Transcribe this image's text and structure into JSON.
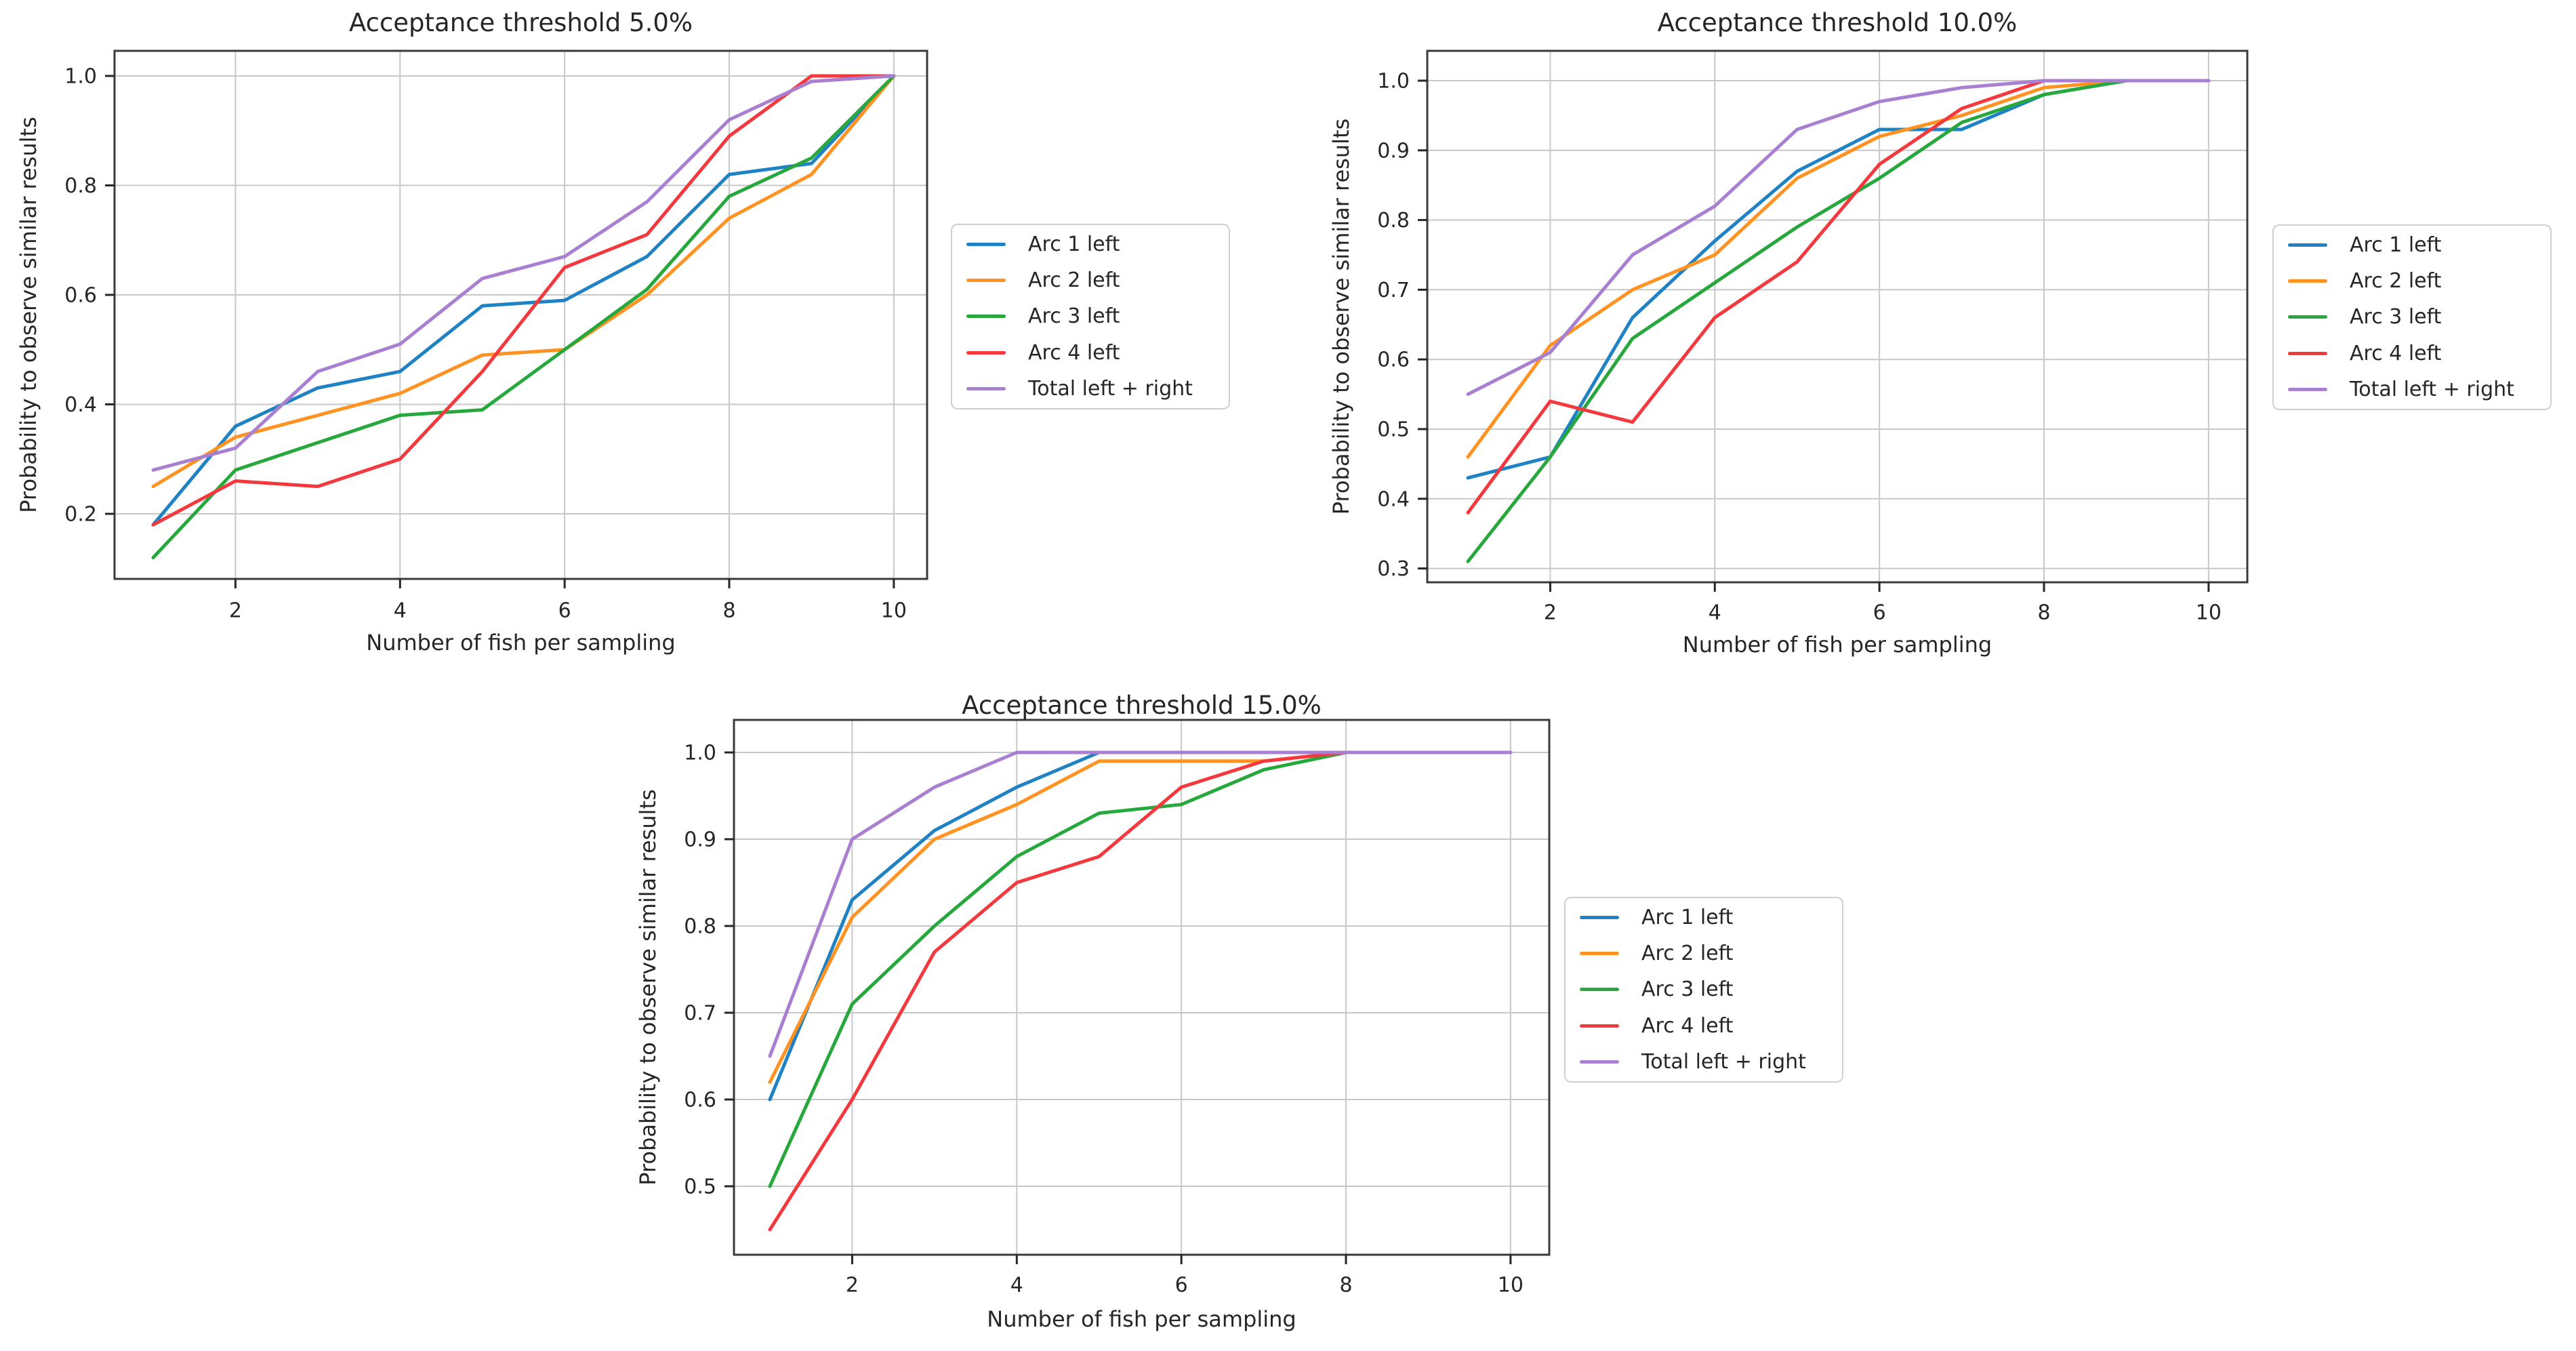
{
  "page": {
    "background": "#ffffff",
    "text_color": "#262626",
    "grid_color": "#c8c8c8",
    "spine_color": "#3a3a3a"
  },
  "chart_data": [
    {
      "type": "line",
      "title": "Acceptance threshold 5.0%",
      "xlabel": "Number of fish per sampling",
      "ylabel": "Probability to observe similar results",
      "x": [
        1,
        2,
        3,
        4,
        5,
        6,
        7,
        8,
        9,
        10
      ],
      "x_ticks": [
        "2",
        "4",
        "6",
        "8",
        "10"
      ],
      "y_ticks": [
        "0.2",
        "0.4",
        "0.6",
        "0.8",
        "1.0"
      ],
      "xlim": [
        0.53,
        10.45
      ],
      "ylim": [
        0.07,
        1.04
      ],
      "grid": true,
      "legend_position": "center right outside",
      "series": [
        {
          "name": "Arc 1 left",
          "color": "#1f82c4",
          "values": [
            0.18,
            0.36,
            0.43,
            0.46,
            0.58,
            0.59,
            0.67,
            0.82,
            0.84,
            1.0
          ]
        },
        {
          "name": "Arc 2 left",
          "color": "#ff9220",
          "values": [
            0.25,
            0.34,
            0.38,
            0.42,
            0.49,
            0.5,
            0.6,
            0.74,
            0.82,
            1.0
          ]
        },
        {
          "name": "Arc 3 left",
          "color": "#27a83c",
          "values": [
            0.12,
            0.28,
            0.33,
            0.38,
            0.39,
            0.5,
            0.61,
            0.78,
            0.85,
            1.0
          ]
        },
        {
          "name": "Arc 4 left",
          "color": "#f4393e",
          "values": [
            0.18,
            0.26,
            0.25,
            0.3,
            0.46,
            0.65,
            0.71,
            0.89,
            1.0,
            1.0
          ]
        },
        {
          "name": "Total left + right",
          "color": "#a97fd2",
          "values": [
            0.28,
            0.32,
            0.46,
            0.51,
            0.63,
            0.67,
            0.77,
            0.92,
            0.99,
            1.0
          ]
        }
      ]
    },
    {
      "type": "line",
      "title": "Acceptance threshold 10.0%",
      "xlabel": "Number of fish per sampling",
      "ylabel": "Probability to observe similar results",
      "x": [
        1,
        2,
        3,
        4,
        5,
        6,
        7,
        8,
        9,
        10
      ],
      "x_ticks": [
        "2",
        "4",
        "6",
        "8",
        "10"
      ],
      "y_ticks": [
        "0.3",
        "0.4",
        "0.5",
        "0.6",
        "0.7",
        "0.8",
        "0.9",
        "1.0"
      ],
      "xlim": [
        0.53,
        10.45
      ],
      "ylim": [
        0.28,
        1.04
      ],
      "grid": true,
      "legend_position": "center right outside",
      "series": [
        {
          "name": "Arc 1 left",
          "color": "#1f82c4",
          "values": [
            0.43,
            0.46,
            0.66,
            0.77,
            0.87,
            0.93,
            0.93,
            0.98,
            1.0,
            1.0
          ]
        },
        {
          "name": "Arc 2 left",
          "color": "#ff9220",
          "values": [
            0.46,
            0.62,
            0.7,
            0.75,
            0.86,
            0.92,
            0.95,
            0.99,
            1.0,
            1.0
          ]
        },
        {
          "name": "Arc 3 left",
          "color": "#27a83c",
          "values": [
            0.31,
            0.46,
            0.63,
            0.71,
            0.79,
            0.86,
            0.94,
            0.98,
            1.0,
            1.0
          ]
        },
        {
          "name": "Arc 4 left",
          "color": "#f4393e",
          "values": [
            0.38,
            0.54,
            0.51,
            0.66,
            0.74,
            0.88,
            0.96,
            1.0,
            1.0,
            1.0
          ]
        },
        {
          "name": "Total left + right",
          "color": "#a97fd2",
          "values": [
            0.55,
            0.61,
            0.75,
            0.82,
            0.93,
            0.97,
            0.99,
            1.0,
            1.0,
            1.0
          ]
        }
      ]
    },
    {
      "type": "line",
      "title": "Acceptance threshold 15.0%",
      "xlabel": "Number of fish per sampling",
      "ylabel": "Probability to observe similar results",
      "x": [
        1,
        2,
        3,
        4,
        5,
        6,
        7,
        8,
        9,
        10
      ],
      "x_ticks": [
        "2",
        "4",
        "6",
        "8",
        "10"
      ],
      "y_ticks": [
        "0.5",
        "0.6",
        "0.7",
        "0.8",
        "0.9",
        "1.0"
      ],
      "xlim": [
        0.53,
        10.45
      ],
      "ylim": [
        0.42,
        1.04
      ],
      "grid": true,
      "legend_position": "center right outside",
      "series": [
        {
          "name": "Arc 1 left",
          "color": "#1f82c4",
          "values": [
            0.6,
            0.83,
            0.91,
            0.96,
            1.0,
            1.0,
            1.0,
            1.0,
            1.0,
            1.0
          ]
        },
        {
          "name": "Arc 2 left",
          "color": "#ff9220",
          "values": [
            0.62,
            0.81,
            0.9,
            0.94,
            0.99,
            0.99,
            0.99,
            1.0,
            1.0,
            1.0
          ]
        },
        {
          "name": "Arc 3 left",
          "color": "#27a83c",
          "values": [
            0.5,
            0.71,
            0.8,
            0.88,
            0.93,
            0.94,
            0.98,
            1.0,
            1.0,
            1.0
          ]
        },
        {
          "name": "Arc 4 left",
          "color": "#f4393e",
          "values": [
            0.45,
            0.6,
            0.77,
            0.85,
            0.88,
            0.96,
            0.99,
            1.0,
            1.0,
            1.0
          ]
        },
        {
          "name": "Total left + right",
          "color": "#a97fd2",
          "values": [
            0.65,
            0.9,
            0.96,
            1.0,
            1.0,
            1.0,
            1.0,
            1.0,
            1.0,
            1.0
          ]
        }
      ]
    }
  ]
}
